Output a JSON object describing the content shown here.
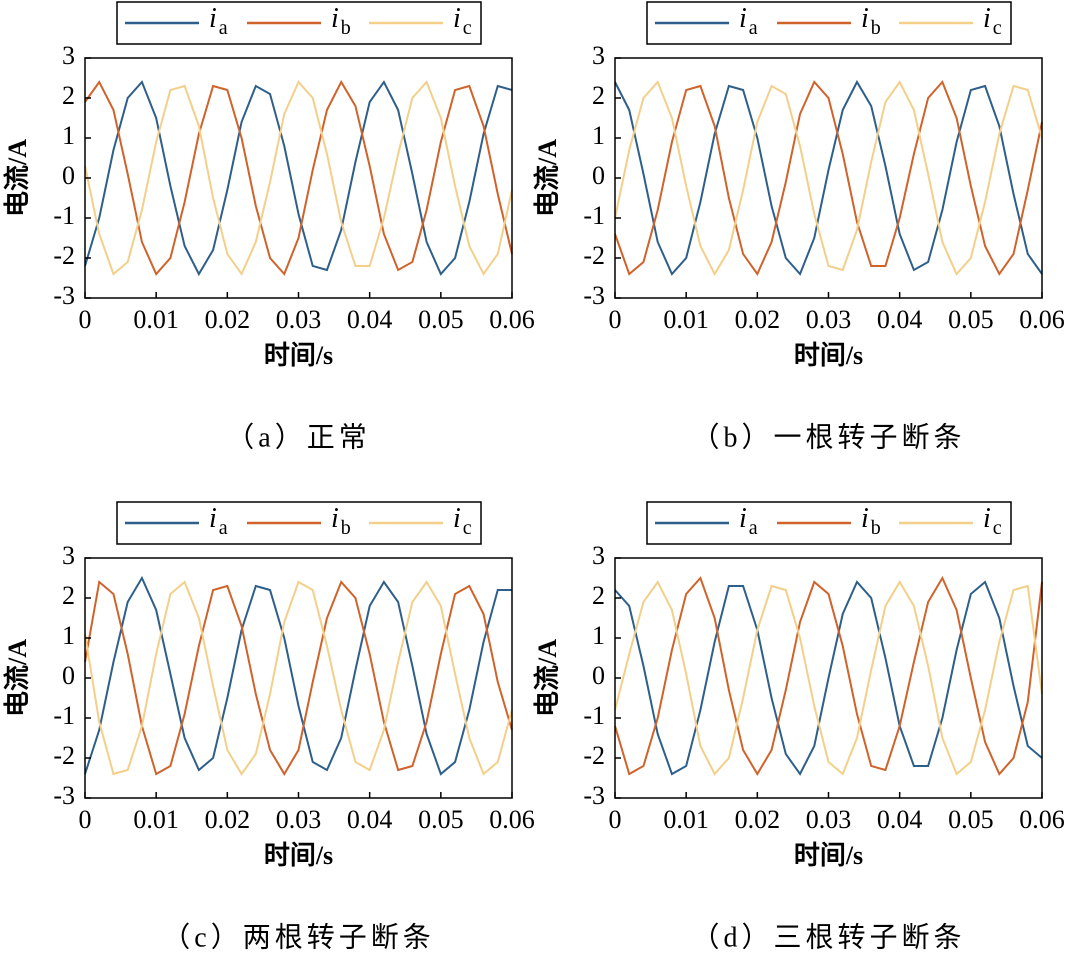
{
  "chart_data": [
    {
      "type": "line",
      "caption": "（a）正常",
      "xlabel": "时间/s",
      "ylabel": "电流/A",
      "x": [
        0,
        0.002,
        0.004,
        0.006,
        0.008,
        0.01,
        0.012,
        0.014,
        0.016,
        0.018,
        0.02,
        0.022,
        0.024,
        0.026,
        0.028,
        0.03,
        0.032,
        0.034,
        0.036,
        0.038,
        0.04,
        0.042,
        0.044,
        0.046,
        0.048,
        0.05,
        0.052,
        0.054,
        0.056,
        0.058,
        0.06
      ],
      "xlim": [
        0,
        0.06
      ],
      "xticks": [
        0,
        0.01,
        0.02,
        0.03,
        0.04,
        0.05,
        0.06
      ],
      "ylim": [
        -3,
        3
      ],
      "yticks": [
        -3,
        -2,
        -1,
        0,
        1,
        2,
        3
      ],
      "grid": false,
      "legend": "top",
      "series": [
        {
          "name": "ia",
          "color": "#2e5f8a",
          "values": [
            -2.2,
            -1.0,
            0.7,
            2.0,
            2.4,
            1.5,
            -0.2,
            -1.7,
            -2.4,
            -1.8,
            -0.3,
            1.4,
            2.3,
            2.1,
            0.8,
            -0.9,
            -2.2,
            -2.3,
            -1.3,
            0.4,
            1.9,
            2.4,
            1.7,
            0.1,
            -1.6,
            -2.4,
            -2.0,
            -0.6,
            1.1,
            2.3,
            2.2
          ]
        },
        {
          "name": "ib",
          "color": "#d0622b",
          "values": [
            1.9,
            2.4,
            1.7,
            0.1,
            -1.6,
            -2.4,
            -2.0,
            -0.6,
            1.1,
            2.3,
            2.2,
            1.0,
            -0.7,
            -2.0,
            -2.4,
            -1.5,
            0.2,
            1.7,
            2.4,
            1.8,
            0.3,
            -1.4,
            -2.3,
            -2.1,
            -0.8,
            0.9,
            2.2,
            2.3,
            1.3,
            -0.4,
            -1.9
          ]
        },
        {
          "name": "ic",
          "color": "#f3cf8a",
          "values": [
            0.3,
            -1.4,
            -2.4,
            -2.1,
            -0.8,
            0.9,
            2.2,
            2.3,
            1.3,
            -0.5,
            -1.9,
            -2.4,
            -1.6,
            -0.1,
            1.6,
            2.4,
            2.0,
            0.6,
            -1.1,
            -2.2,
            -2.2,
            -1.0,
            0.6,
            2.0,
            2.4,
            1.5,
            -0.2,
            -1.7,
            -2.4,
            -1.9,
            -0.3
          ]
        }
      ]
    },
    {
      "type": "line",
      "caption": "（b）一根转子断条",
      "xlabel": "时间/s",
      "ylabel": "电流/A",
      "x": [
        0,
        0.002,
        0.004,
        0.006,
        0.008,
        0.01,
        0.012,
        0.014,
        0.016,
        0.018,
        0.02,
        0.022,
        0.024,
        0.026,
        0.028,
        0.03,
        0.032,
        0.034,
        0.036,
        0.038,
        0.04,
        0.042,
        0.044,
        0.046,
        0.048,
        0.05,
        0.052,
        0.054,
        0.056,
        0.058,
        0.06
      ],
      "xlim": [
        0,
        0.06
      ],
      "xticks": [
        0,
        0.01,
        0.02,
        0.03,
        0.04,
        0.05,
        0.06
      ],
      "ylim": [
        -3,
        3
      ],
      "yticks": [
        -3,
        -2,
        -1,
        0,
        1,
        2,
        3
      ],
      "grid": false,
      "legend": "top",
      "series": [
        {
          "name": "ia",
          "color": "#2e5f8a",
          "values": [
            2.4,
            1.7,
            0.1,
            -1.6,
            -2.4,
            -2.0,
            -0.6,
            1.1,
            2.3,
            2.2,
            1.0,
            -0.7,
            -2.0,
            -2.4,
            -1.5,
            0.2,
            1.7,
            2.4,
            1.8,
            0.3,
            -1.4,
            -2.3,
            -2.1,
            -0.8,
            0.9,
            2.2,
            2.3,
            1.3,
            -0.4,
            -1.9,
            -2.4
          ]
        },
        {
          "name": "ib",
          "color": "#d0622b",
          "values": [
            -1.4,
            -2.4,
            -2.1,
            -0.8,
            0.9,
            2.2,
            2.3,
            1.3,
            -0.5,
            -1.9,
            -2.4,
            -1.6,
            -0.1,
            1.6,
            2.4,
            2.0,
            0.6,
            -1.1,
            -2.2,
            -2.2,
            -1.0,
            0.6,
            2.0,
            2.4,
            1.5,
            -0.2,
            -1.7,
            -2.4,
            -1.9,
            -0.3,
            1.4
          ]
        },
        {
          "name": "ic",
          "color": "#f3cf8a",
          "values": [
            -1.0,
            0.7,
            2.0,
            2.4,
            1.5,
            -0.2,
            -1.7,
            -2.4,
            -1.8,
            -0.3,
            1.4,
            2.3,
            2.1,
            0.8,
            -0.9,
            -2.2,
            -2.3,
            -1.3,
            0.4,
            1.9,
            2.4,
            1.7,
            0.1,
            -1.6,
            -2.4,
            -2.0,
            -0.6,
            1.1,
            2.3,
            2.2,
            1.0
          ]
        }
      ]
    },
    {
      "type": "line",
      "caption": "（c）两根转子断条",
      "xlabel": "时间/s",
      "ylabel": "电流/A",
      "x": [
        0,
        0.002,
        0.004,
        0.006,
        0.008,
        0.01,
        0.012,
        0.014,
        0.016,
        0.018,
        0.02,
        0.022,
        0.024,
        0.026,
        0.028,
        0.03,
        0.032,
        0.034,
        0.036,
        0.038,
        0.04,
        0.042,
        0.044,
        0.046,
        0.048,
        0.05,
        0.052,
        0.054,
        0.056,
        0.058,
        0.06
      ],
      "xlim": [
        0,
        0.06
      ],
      "xticks": [
        0,
        0.01,
        0.02,
        0.03,
        0.04,
        0.05,
        0.06
      ],
      "ylim": [
        -3,
        3
      ],
      "yticks": [
        -3,
        -2,
        -1,
        0,
        1,
        2,
        3
      ],
      "grid": false,
      "legend": "top",
      "series": [
        {
          "name": "ia",
          "color": "#2e5f8a",
          "values": [
            -2.4,
            -1.3,
            0.4,
            1.9,
            2.5,
            1.7,
            0.1,
            -1.5,
            -2.3,
            -2.0,
            -0.5,
            1.2,
            2.3,
            2.2,
            1.0,
            -0.7,
            -2.1,
            -2.3,
            -1.5,
            0.2,
            1.8,
            2.4,
            1.9,
            0.3,
            -1.4,
            -2.4,
            -2.1,
            -0.8,
            0.9,
            2.2,
            2.2
          ]
        },
        {
          "name": "ib",
          "color": "#d0622b",
          "values": [
            0.4,
            2.4,
            2.1,
            0.6,
            -1.2,
            -2.4,
            -2.2,
            -0.9,
            0.8,
            2.2,
            2.3,
            1.3,
            -0.4,
            -1.8,
            -2.4,
            -1.8,
            -0.1,
            1.5,
            2.4,
            2.0,
            0.6,
            -1.1,
            -2.3,
            -2.2,
            -1.1,
            0.6,
            2.1,
            2.3,
            1.6,
            -0.1,
            -1.3
          ]
        },
        {
          "name": "ic",
          "color": "#f3cf8a",
          "values": [
            1.1,
            -1.1,
            -2.4,
            -2.3,
            -1.2,
            0.6,
            2.1,
            2.4,
            1.5,
            -0.2,
            -1.8,
            -2.4,
            -1.9,
            -0.4,
            1.4,
            2.4,
            2.2,
            0.8,
            -0.8,
            -2.1,
            -2.3,
            -1.3,
            0.4,
            1.9,
            2.4,
            1.8,
            0.1,
            -1.5,
            -2.4,
            -2.1,
            -0.8
          ]
        }
      ]
    },
    {
      "type": "line",
      "caption": "（d）三根转子断条",
      "xlabel": "时间/s",
      "ylabel": "电流/A",
      "x": [
        0,
        0.002,
        0.004,
        0.006,
        0.008,
        0.01,
        0.012,
        0.014,
        0.016,
        0.018,
        0.02,
        0.022,
        0.024,
        0.026,
        0.028,
        0.03,
        0.032,
        0.034,
        0.036,
        0.038,
        0.04,
        0.042,
        0.044,
        0.046,
        0.048,
        0.05,
        0.052,
        0.054,
        0.056,
        0.058,
        0.06
      ],
      "xlim": [
        0,
        0.06
      ],
      "xticks": [
        0,
        0.01,
        0.02,
        0.03,
        0.04,
        0.05,
        0.06
      ],
      "ylim": [
        -3,
        3
      ],
      "yticks": [
        -3,
        -2,
        -1,
        0,
        1,
        2,
        3
      ],
      "grid": false,
      "legend": "top",
      "series": [
        {
          "name": "ia",
          "color": "#2e5f8a",
          "values": [
            2.2,
            1.8,
            0.3,
            -1.4,
            -2.4,
            -2.2,
            -0.8,
            0.9,
            2.3,
            2.3,
            1.2,
            -0.5,
            -1.9,
            -2.4,
            -1.7,
            0.0,
            1.6,
            2.4,
            2.0,
            0.5,
            -1.2,
            -2.2,
            -2.2,
            -1.0,
            0.7,
            2.1,
            2.4,
            1.5,
            -0.2,
            -1.7,
            -2.0
          ]
        },
        {
          "name": "ib",
          "color": "#d0622b",
          "values": [
            -1.2,
            -2.4,
            -2.2,
            -1.0,
            0.7,
            2.1,
            2.5,
            1.5,
            -0.3,
            -1.8,
            -2.4,
            -1.8,
            -0.3,
            1.4,
            2.4,
            2.1,
            0.8,
            -0.9,
            -2.2,
            -2.3,
            -1.2,
            0.4,
            1.9,
            2.5,
            1.7,
            0.0,
            -1.6,
            -2.4,
            -2.0,
            -0.6,
            2.4
          ]
        },
        {
          "name": "ic",
          "color": "#f3cf8a",
          "values": [
            -0.8,
            0.6,
            1.9,
            2.4,
            1.7,
            0.1,
            -1.7,
            -2.4,
            -2.0,
            -0.5,
            1.2,
            2.3,
            2.2,
            1.0,
            -0.7,
            -2.1,
            -2.4,
            -1.5,
            0.2,
            1.8,
            2.4,
            1.8,
            0.3,
            -1.5,
            -2.4,
            -2.1,
            -0.8,
            0.9,
            2.2,
            2.3,
            -0.4
          ]
        }
      ]
    }
  ]
}
